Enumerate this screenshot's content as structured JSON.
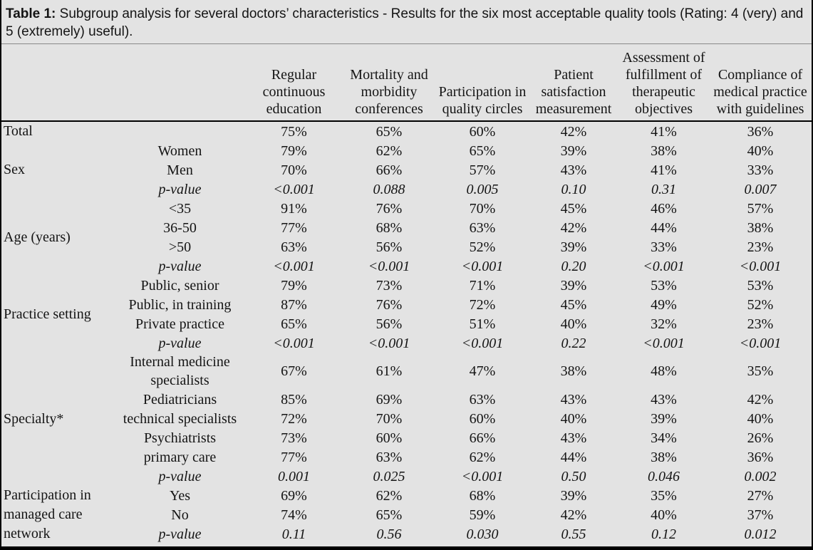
{
  "colors": {
    "background": "#e3e3e3",
    "text": "#141414",
    "rule": "#000000"
  },
  "title": {
    "label_bold": "Table 1:",
    "text": " Subgroup analysis for several doctors’ characteristics - Results for the six most acceptable quality tools (Rating: 4 (very) and 5 (extremely) useful)."
  },
  "table": {
    "columns": [
      "Regular continuous education",
      "Mortality and morbidity conferences",
      "Participation in quality circles",
      "Patient satisfaction measurement",
      "Assessment of fulfillment of therapeutic objectives",
      "Compliance of medical practice with guidelines"
    ],
    "groups": [
      {
        "label": "Total",
        "rows": [
          {
            "label": "",
            "italic": false,
            "values": [
              "75%",
              "65%",
              "60%",
              "42%",
              "41%",
              "36%"
            ]
          }
        ]
      },
      {
        "label": "Sex",
        "rows": [
          {
            "label": "Women",
            "italic": false,
            "values": [
              "79%",
              "62%",
              "65%",
              "39%",
              "38%",
              "40%"
            ]
          },
          {
            "label": "Men",
            "italic": false,
            "values": [
              "70%",
              "66%",
              "57%",
              "43%",
              "41%",
              "33%"
            ]
          },
          {
            "label": "p-value",
            "italic": true,
            "values": [
              "<0.001",
              "0.088",
              "0.005",
              "0.10",
              "0.31",
              "0.007"
            ]
          }
        ]
      },
      {
        "label": "Age (years)",
        "rows": [
          {
            "label": "<35",
            "italic": false,
            "values": [
              "91%",
              "76%",
              "70%",
              "45%",
              "46%",
              "57%"
            ]
          },
          {
            "label": "36-50",
            "italic": false,
            "values": [
              "77%",
              "68%",
              "63%",
              "42%",
              "44%",
              "38%"
            ]
          },
          {
            "label": ">50",
            "italic": false,
            "values": [
              "63%",
              "56%",
              "52%",
              "39%",
              "33%",
              "23%"
            ]
          },
          {
            "label": "p-value",
            "italic": true,
            "values": [
              "<0.001",
              "<0.001",
              "<0.001",
              "0.20",
              "<0.001",
              "<0.001"
            ]
          }
        ]
      },
      {
        "label": "Practice setting",
        "rows": [
          {
            "label": "Public, senior",
            "italic": false,
            "values": [
              "79%",
              "73%",
              "71%",
              "39%",
              "53%",
              "53%"
            ]
          },
          {
            "label": "Public, in training",
            "italic": false,
            "values": [
              "87%",
              "76%",
              "72%",
              "45%",
              "49%",
              "52%"
            ]
          },
          {
            "label": "Private practice",
            "italic": false,
            "values": [
              "65%",
              "56%",
              "51%",
              "40%",
              "32%",
              "23%"
            ]
          },
          {
            "label": "p-value",
            "italic": true,
            "values": [
              "<0.001",
              "<0.001",
              "<0.001",
              "0.22",
              "<0.001",
              "<0.001"
            ]
          }
        ]
      },
      {
        "label": "Specialty*",
        "rows": [
          {
            "label": "Internal medicine specialists",
            "italic": false,
            "values": [
              "67%",
              "61%",
              "47%",
              "38%",
              "48%",
              "35%"
            ]
          },
          {
            "label": "Pediatricians",
            "italic": false,
            "values": [
              "85%",
              "69%",
              "63%",
              "43%",
              "43%",
              "42%"
            ]
          },
          {
            "label": "technical specialists",
            "italic": false,
            "values": [
              "72%",
              "70%",
              "60%",
              "40%",
              "39%",
              "40%"
            ]
          },
          {
            "label": "Psychiatrists",
            "italic": false,
            "values": [
              "73%",
              "60%",
              "66%",
              "43%",
              "34%",
              "26%"
            ]
          },
          {
            "label": "primary care",
            "italic": false,
            "values": [
              "77%",
              "63%",
              "62%",
              "44%",
              "38%",
              "36%"
            ]
          },
          {
            "label": "p-value",
            "italic": true,
            "values": [
              "0.001",
              "0.025",
              "<0.001",
              "0.50",
              "0.046",
              "0.002"
            ]
          }
        ]
      },
      {
        "label": "Participation in managed care network",
        "rows": [
          {
            "label": "Yes",
            "italic": false,
            "values": [
              "69%",
              "62%",
              "68%",
              "39%",
              "35%",
              "27%"
            ]
          },
          {
            "label": "No",
            "italic": false,
            "values": [
              "74%",
              "65%",
              "59%",
              "42%",
              "40%",
              "37%"
            ]
          },
          {
            "label": "p-value",
            "italic": true,
            "values": [
              "0.11",
              "0.56",
              "0.030",
              "0.55",
              "0.12",
              "0.012"
            ]
          }
        ]
      }
    ]
  }
}
